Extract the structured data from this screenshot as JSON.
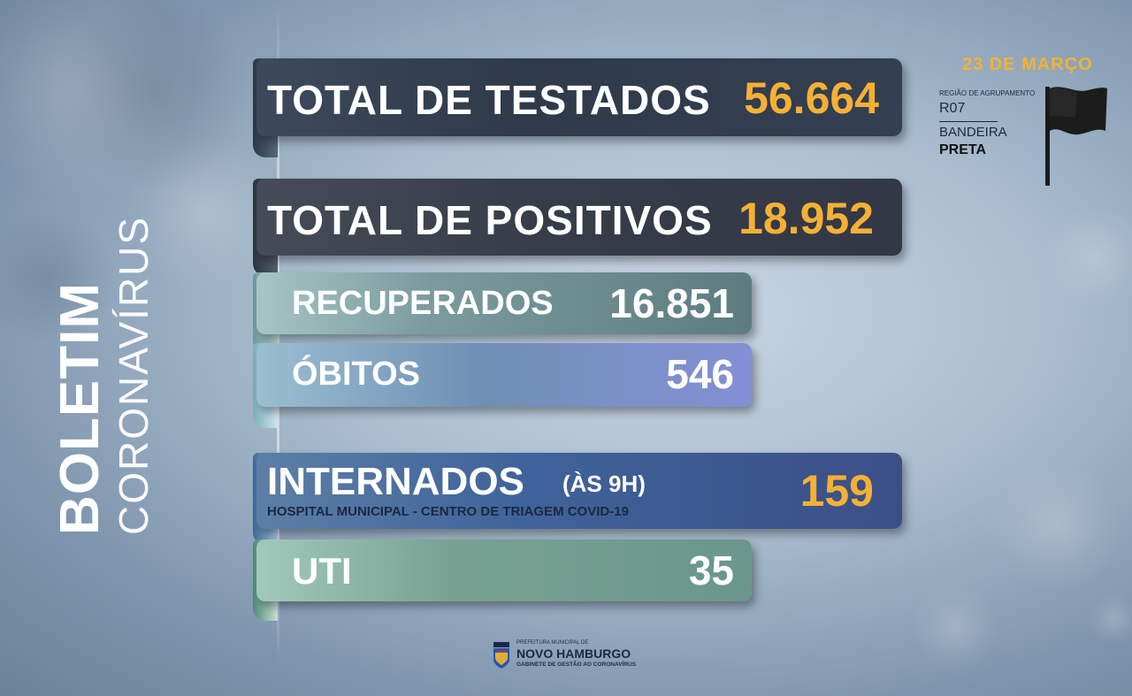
{
  "side_title": {
    "bold": "BOLETIM",
    "thin": "CORONAVÍRUS"
  },
  "date": "23 DE MARÇO",
  "region": {
    "label": "REGIÃO DE AGRUPAMENTO",
    "code": "R07",
    "flag_word": "BANDEIRA",
    "flag_color": "PRETA"
  },
  "stats": {
    "testados": {
      "label": "TOTAL DE TESTADOS",
      "value": "56.664"
    },
    "positivos": {
      "label": "TOTAL DE POSITIVOS",
      "value": "18.952"
    },
    "recuperados": {
      "label": "RECUPERADOS",
      "value": "16.851"
    },
    "obitos": {
      "label": "ÓBITOS",
      "value": "546"
    },
    "internados": {
      "label": "INTERNADOS",
      "suffix": "(ÀS 9H)",
      "sub": "HOSPITAL MUNICIPAL - CENTRO DE TRIAGEM COVID-19",
      "value": "159"
    },
    "uti": {
      "label": "UTI",
      "value": "35"
    }
  },
  "logo": {
    "line1": "PREFEITURA MUNICIPAL DE",
    "line2": "NOVO HAMBURGO",
    "line3": "GABINETE DE GESTÃO AO CORONAVÍRUS"
  },
  "colors": {
    "accent_value": "#f5b036",
    "bar_dark": "#2f3b4c",
    "bar_teal": "#5f7f83",
    "bar_purple": "#7f88c8",
    "bar_navy": "#3f5a8e",
    "bar_green": "#6f9a8c"
  }
}
